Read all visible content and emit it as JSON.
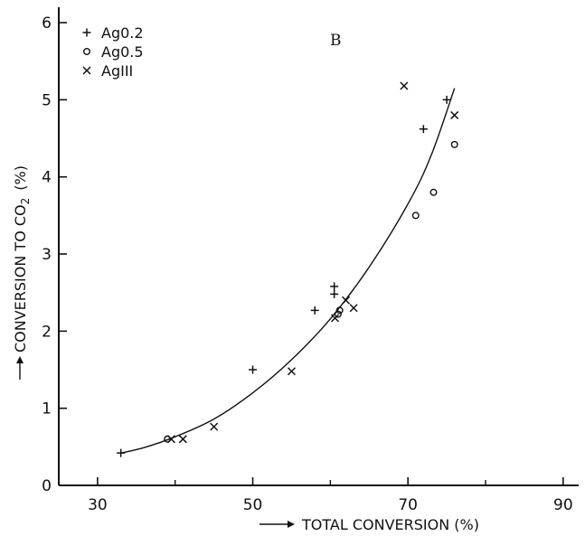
{
  "chart_data": {
    "type": "scatter",
    "panel_label": "B",
    "xlabel": "TOTAL CONVERSION (%)",
    "ylabel": "CONVERSION TO CO",
    "ylabel_sub": "2",
    "ylabel_unit": "(%)",
    "xlim": [
      25,
      92
    ],
    "ylim": [
      0,
      6.2
    ],
    "xticks": [
      30,
      50,
      70,
      90
    ],
    "xtick_labels": [
      "30",
      "50",
      "70",
      "90"
    ],
    "yticks": [
      0,
      1,
      2,
      3,
      4,
      5,
      6
    ],
    "ytick_labels": [
      "0",
      "1",
      "2",
      "3",
      "4",
      "5",
      "6"
    ],
    "grid": false,
    "legend": "top-left",
    "series": [
      {
        "name": "Ag0.2",
        "marker": "plus",
        "points": [
          [
            33,
            0.42
          ],
          [
            50,
            1.5
          ],
          [
            58,
            2.27
          ],
          [
            60.5,
            2.48
          ],
          [
            60.5,
            2.58
          ],
          [
            72,
            4.62
          ],
          [
            75,
            5.0
          ]
        ]
      },
      {
        "name": "Ag0.5",
        "marker": "circle",
        "points": [
          [
            39,
            0.6
          ],
          [
            61,
            2.22
          ],
          [
            61.2,
            2.27
          ],
          [
            71,
            3.5
          ],
          [
            73.3,
            3.8
          ],
          [
            76,
            4.42
          ]
        ]
      },
      {
        "name": "AgIII",
        "marker": "x",
        "points": [
          [
            39.5,
            0.6
          ],
          [
            41,
            0.6
          ],
          [
            45,
            0.76
          ],
          [
            55,
            1.48
          ],
          [
            60.6,
            2.17
          ],
          [
            62,
            2.4
          ],
          [
            63,
            2.3
          ],
          [
            69.5,
            5.18
          ],
          [
            76,
            4.8
          ]
        ]
      }
    ],
    "fit_curve": [
      [
        33,
        0.42
      ],
      [
        36,
        0.49
      ],
      [
        40,
        0.63
      ],
      [
        45,
        0.86
      ],
      [
        50,
        1.2
      ],
      [
        55,
        1.63
      ],
      [
        60,
        2.16
      ],
      [
        65,
        2.83
      ],
      [
        70,
        3.65
      ],
      [
        73,
        4.28
      ],
      [
        76,
        5.15
      ]
    ]
  }
}
